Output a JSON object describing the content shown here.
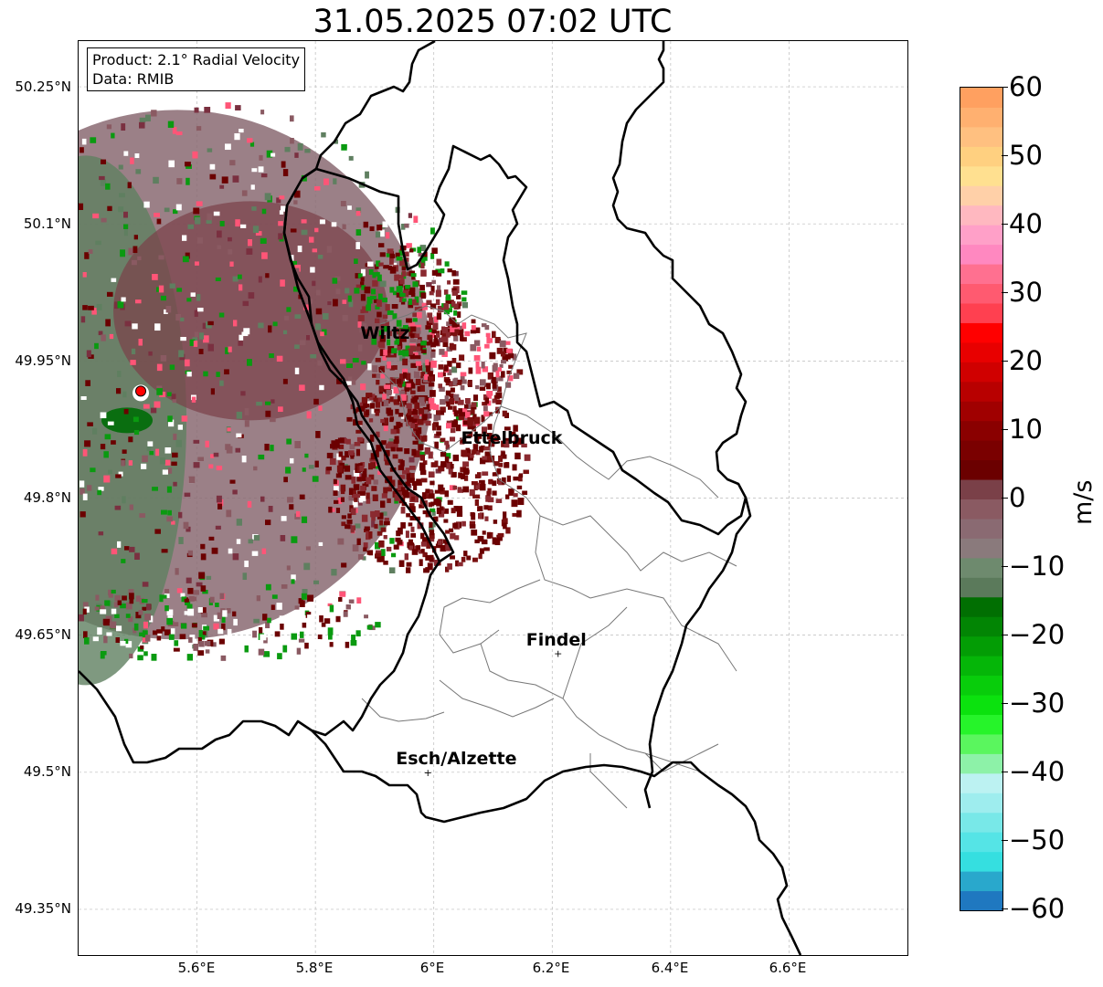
{
  "title": "31.05.2025 07:02 UTC",
  "info": {
    "product": "Product: 2.1° Radial Velocity",
    "data": "Data: RMIB"
  },
  "axes": {
    "lon_ticks": [
      "5.6°E",
      "5.8°E",
      "6°E",
      "6.2°E",
      "6.4°E",
      "6.6°E"
    ],
    "lat_ticks": [
      "50.25°N",
      "50.1°N",
      "49.95°N",
      "49.8°N",
      "49.65°N",
      "49.5°N",
      "49.35°N"
    ],
    "lon_range": [
      5.4,
      6.8
    ],
    "lat_range": [
      49.3,
      50.3
    ],
    "grid": "dashed gray"
  },
  "colorbar": {
    "unit": "m/s",
    "min": -60,
    "max": 60,
    "ticks": [
      "60",
      "50",
      "40",
      "30",
      "20",
      "10",
      "0",
      "−10",
      "−20",
      "−30",
      "−40",
      "−50",
      "−60"
    ]
  },
  "cities": [
    {
      "name": "Wiltz",
      "lon": 5.93,
      "lat": 49.965,
      "marker": false
    },
    {
      "name": "Ettelbruck",
      "lon": 6.1,
      "lat": 49.85,
      "marker": false
    },
    {
      "name": "Findel",
      "lon": 6.21,
      "lat": 49.63,
      "marker": true
    },
    {
      "name": "Esch/Alzette",
      "lon": 5.99,
      "lat": 49.5,
      "marker": true
    }
  ],
  "radar": {
    "lon": 5.505,
    "lat": 49.915
  },
  "colors": {
    "strong_inbound": "#6b0000",
    "near_zero": "#8a6a72",
    "outbound": "#0a7a10",
    "radar_site": "#ff0000"
  }
}
